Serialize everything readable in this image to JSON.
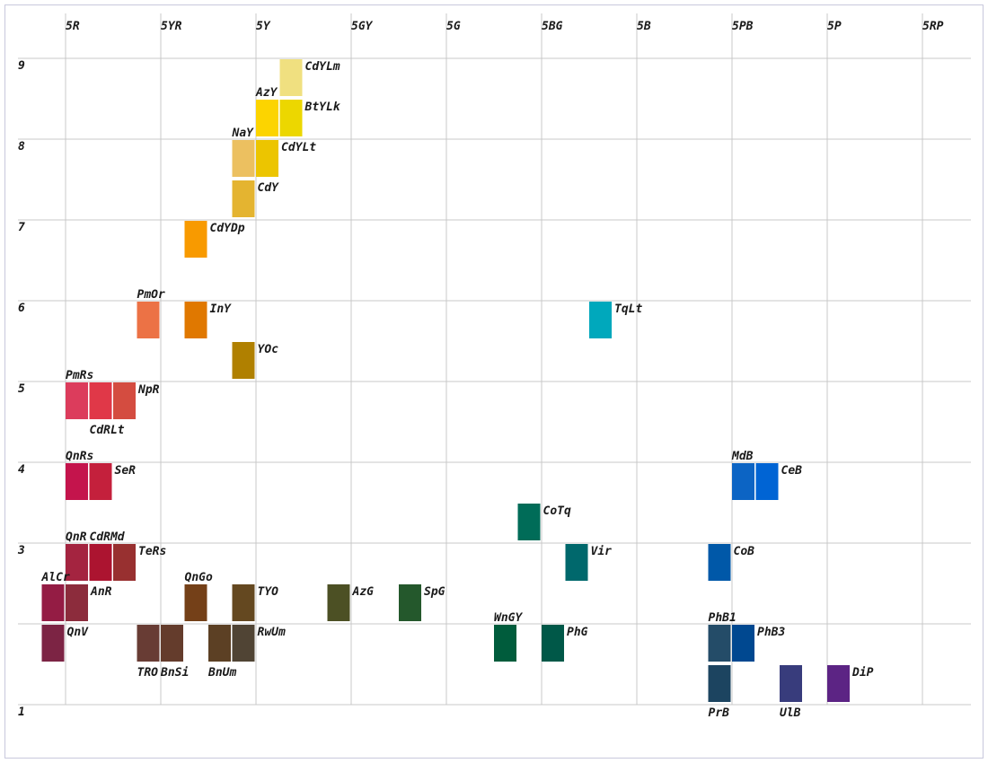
{
  "chart_data": {
    "type": "scatter",
    "title": "",
    "xlabel": "",
    "ylabel": "",
    "x_ticks": [
      "5R",
      "5YR",
      "5Y",
      "5GY",
      "5G",
      "5BG",
      "5B",
      "5PB",
      "5P",
      "5RP"
    ],
    "y_ticks": [
      "9",
      "8",
      "7",
      "6",
      "5",
      "4",
      "3",
      "1"
    ],
    "grid": true,
    "legend": "none",
    "swatches": [
      {
        "name": "CdYLm",
        "col": 9,
        "row": 0,
        "color": "#f0e080",
        "label_side": "right"
      },
      {
        "name": "AzY",
        "col": 8,
        "row": 1,
        "color": "#fcd400",
        "label_side": "above"
      },
      {
        "name": "BtYLk",
        "col": 9,
        "row": 1,
        "color": "#ecd700",
        "label_side": "right"
      },
      {
        "name": "NaY",
        "col": 7,
        "row": 2,
        "color": "#ecc060",
        "label_side": "above"
      },
      {
        "name": "CdYLt",
        "col": 8,
        "row": 2,
        "color": "#ecc500",
        "label_side": "right"
      },
      {
        "name": "CdY",
        "col": 7,
        "row": 3,
        "color": "#e4b430",
        "label_side": "right"
      },
      {
        "name": "CdYDp",
        "col": 5,
        "row": 4,
        "color": "#f89a00",
        "label_side": "right"
      },
      {
        "name": "PmOr",
        "col": 3,
        "row": 6,
        "color": "#ec7245",
        "label_side": "above"
      },
      {
        "name": "InY",
        "col": 5,
        "row": 6,
        "color": "#e07800",
        "label_side": "right"
      },
      {
        "name": "TqLt",
        "col": 22,
        "row": 6,
        "color": "#00a8bc",
        "label_side": "right"
      },
      {
        "name": "YOc",
        "col": 7,
        "row": 7,
        "color": "#b08000",
        "label_side": "right"
      },
      {
        "name": "PmRs",
        "col": 0,
        "row": 8,
        "color": "#dc3c5c",
        "label_side": "above"
      },
      {
        "name": "CdRLt",
        "col": 1,
        "row": 8,
        "color": "#e03848",
        "label_side": "below"
      },
      {
        "name": "NpR",
        "col": 2,
        "row": 8,
        "color": "#d44c40",
        "label_side": "right"
      },
      {
        "name": "QnRs",
        "col": 0,
        "row": 10,
        "color": "#c4144c",
        "label_side": "above"
      },
      {
        "name": "SeR",
        "col": 1,
        "row": 10,
        "color": "#c4203c",
        "label_side": "right"
      },
      {
        "name": "MdB",
        "col": 28,
        "row": 10,
        "color": "#0c64c4",
        "label_side": "above"
      },
      {
        "name": "CeB",
        "col": 29,
        "row": 10,
        "color": "#0064d4",
        "label_side": "right"
      },
      {
        "name": "CoTq",
        "col": 19,
        "row": 11,
        "color": "#006c58",
        "label_side": "right"
      },
      {
        "name": "QnR",
        "col": 0,
        "row": 12,
        "color": "#a42440",
        "label_side": "above"
      },
      {
        "name": "CdRMd",
        "col": 1,
        "row": 12,
        "color": "#ac1430",
        "label_side": "above"
      },
      {
        "name": "TeRs",
        "col": 2,
        "row": 12,
        "color": "#983030",
        "label_side": "right"
      },
      {
        "name": "Vir",
        "col": 21,
        "row": 12,
        "color": "#00686c",
        "label_side": "right"
      },
      {
        "name": "CoB",
        "col": 27,
        "row": 12,
        "color": "#0058a8",
        "label_side": "right"
      },
      {
        "name": "AlCr",
        "col": -1,
        "row": 13,
        "color": "#941c44",
        "label_side": "above"
      },
      {
        "name": "AnR",
        "col": 0,
        "row": 13,
        "color": "#8c2c3c",
        "label_side": "right"
      },
      {
        "name": "QnGo",
        "col": 5,
        "row": 13,
        "color": "#744018",
        "label_side": "above"
      },
      {
        "name": "TYO",
        "col": 7,
        "row": 13,
        "color": "#644820",
        "label_side": "right"
      },
      {
        "name": "AzG",
        "col": 11,
        "row": 13,
        "color": "#4c5024",
        "label_side": "right"
      },
      {
        "name": "SpG",
        "col": 14,
        "row": 13,
        "color": "#24582c",
        "label_side": "right"
      },
      {
        "name": "QnV",
        "col": -1,
        "row": 14,
        "color": "#7c2444",
        "label_side": "right"
      },
      {
        "name": "TRO",
        "col": 3,
        "row": 14,
        "color": "#683c34",
        "label_side": "below"
      },
      {
        "name": "BnSi",
        "col": 4,
        "row": 14,
        "color": "#643c2c",
        "label_side": "below"
      },
      {
        "name": "BnUm",
        "col": 6,
        "row": 14,
        "color": "#5c4024",
        "label_side": "below"
      },
      {
        "name": "RwUm",
        "col": 7,
        "row": 14,
        "color": "#504434",
        "label_side": "right"
      },
      {
        "name": "WnGY",
        "col": 18,
        "row": 14,
        "color": "#005c3c",
        "label_side": "above"
      },
      {
        "name": "PhG",
        "col": 20,
        "row": 14,
        "color": "#005848",
        "label_side": "right"
      },
      {
        "name": "PhB1",
        "col": 27,
        "row": 14,
        "color": "#244c68",
        "label_side": "above"
      },
      {
        "name": "PhB3",
        "col": 28,
        "row": 14,
        "color": "#004890",
        "label_side": "right"
      },
      {
        "name": "PrB",
        "col": 27,
        "row": 15,
        "color": "#1c4460",
        "label_side": "below"
      },
      {
        "name": "UlB",
        "col": 30,
        "row": 15,
        "color": "#383c7c",
        "label_side": "below"
      },
      {
        "name": "DiP",
        "col": 32,
        "row": 15,
        "color": "#5c2484",
        "label_side": "right"
      }
    ]
  }
}
